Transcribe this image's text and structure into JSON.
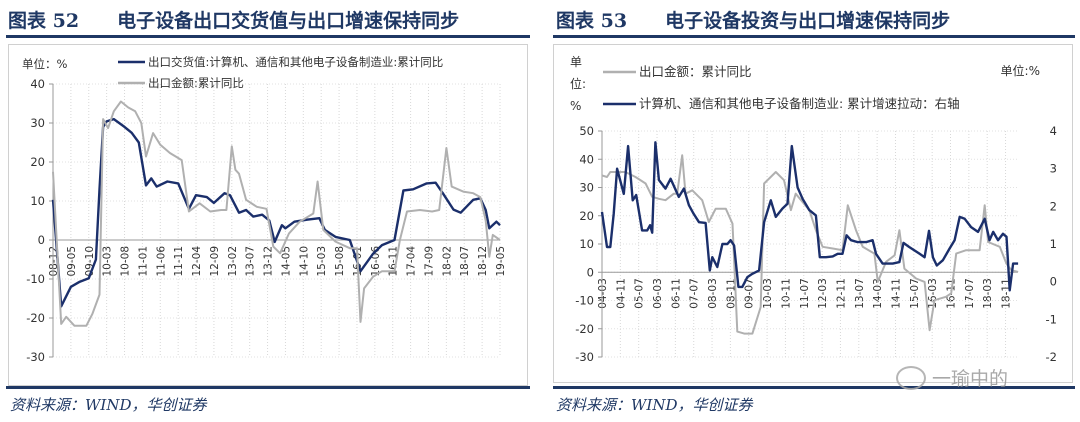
{
  "figures": [
    {
      "label": "图表 52",
      "title": "电子设备出口交货值与出口增速保持同步",
      "source": "资料来源：WIND，华创证券"
    },
    {
      "label": "图表 53",
      "title": "电子设备投资与出口增速保持同步",
      "source": "资料来源：WIND，华创证券"
    }
  ],
  "watermark": "一瑜中的",
  "colors": {
    "navy": "#1f3864",
    "series_dark": "#1b2f6b",
    "series_gray": "#b0b0b0"
  },
  "chart_data": [
    {
      "type": "line",
      "unit_label": "单位：%",
      "ylim": [
        -30,
        40
      ],
      "yticks": [
        "40",
        "30",
        "20",
        "10",
        "0",
        "-10",
        "-20",
        "-30"
      ],
      "x_tick_labels": [
        "08-12",
        "09-05",
        "09-10",
        "10-03",
        "10-08",
        "11-01",
        "11-06",
        "11-11",
        "12-04",
        "12-09",
        "13-02",
        "13-07",
        "13-12",
        "14-05",
        "14-10",
        "15-03",
        "15-08",
        "16-01",
        "16-06",
        "16-11",
        "17-04",
        "17-09",
        "18-02",
        "18-07",
        "18-12",
        "19-05"
      ],
      "x_tick_step_months": 5,
      "months": 126,
      "series": [
        {
          "name": "出口交货值:计算机、通信和其他电子设备制造业:累计同比",
          "color": "#1b2f6b",
          "axis": "left",
          "points": [
            [
              0,
              10.3
            ],
            [
              2.3,
              -17
            ],
            [
              5,
              -12
            ],
            [
              7.5,
              -10.7
            ],
            [
              10,
              -9.8
            ],
            [
              12,
              -5
            ],
            [
              13,
              13
            ],
            [
              14,
              29
            ],
            [
              15,
              30.4
            ],
            [
              17,
              31
            ],
            [
              20,
              29
            ],
            [
              22,
              27.5
            ],
            [
              24,
              25
            ],
            [
              26,
              14
            ],
            [
              27.5,
              15.8
            ],
            [
              29,
              13.7
            ],
            [
              32,
              15
            ],
            [
              35,
              14.5
            ],
            [
              38,
              8
            ],
            [
              40,
              11.5
            ],
            [
              43,
              11
            ],
            [
              45,
              9.5
            ],
            [
              48,
              12
            ],
            [
              49.5,
              11.5
            ],
            [
              52,
              7
            ],
            [
              54,
              7.7
            ],
            [
              56,
              6
            ],
            [
              58.5,
              6.5
            ],
            [
              60.5,
              5
            ],
            [
              62,
              -0.5
            ],
            [
              64,
              3.8
            ],
            [
              65,
              3
            ],
            [
              67.5,
              4.7
            ],
            [
              71,
              5.2
            ],
            [
              74.5,
              5.6
            ],
            [
              76,
              2.6
            ],
            [
              79,
              0.8
            ],
            [
              83,
              0
            ],
            [
              86,
              -8
            ],
            [
              89.5,
              -3.5
            ],
            [
              92,
              -1.3
            ],
            [
              95.5,
              0
            ],
            [
              98,
              12.7
            ],
            [
              100.7,
              13
            ],
            [
              104.5,
              14.5
            ],
            [
              107,
              14.7
            ],
            [
              109,
              12
            ],
            [
              112,
              7.8
            ],
            [
              114,
              7
            ],
            [
              117.5,
              10.3
            ],
            [
              119.5,
              10.7
            ],
            [
              121,
              7.7
            ],
            [
              122,
              3
            ],
            [
              124,
              4.7
            ],
            [
              125,
              3.8
            ]
          ]
        },
        {
          "name": "出口金额:累计同比",
          "color": "#b0b0b0",
          "axis": "left",
          "points": [
            [
              0,
              17.5
            ],
            [
              2.3,
              -21.5
            ],
            [
              3.7,
              -19.7
            ],
            [
              6,
              -22
            ],
            [
              9.3,
              -22
            ],
            [
              11,
              -19
            ],
            [
              13,
              -14
            ],
            [
              14,
              31
            ],
            [
              15.4,
              28.7
            ],
            [
              17,
              33
            ],
            [
              19,
              35.5
            ],
            [
              21,
              34
            ],
            [
              23,
              33
            ],
            [
              24.7,
              30
            ],
            [
              26,
              21.4
            ],
            [
              28,
              27.4
            ],
            [
              30,
              24.4
            ],
            [
              32.7,
              22.3
            ],
            [
              36,
              20.5
            ],
            [
              38,
              7.3
            ],
            [
              41,
              9.4
            ],
            [
              44,
              7.3
            ],
            [
              47,
              7.7
            ],
            [
              48.5,
              7.7
            ],
            [
              50,
              24
            ],
            [
              51,
              18
            ],
            [
              52,
              17
            ],
            [
              54,
              10.3
            ],
            [
              57,
              8.5
            ],
            [
              59.7,
              8
            ],
            [
              61.6,
              -1.7
            ],
            [
              63.5,
              -3.4
            ],
            [
              66,
              1.7
            ],
            [
              69,
              4.7
            ],
            [
              72.8,
              6.8
            ],
            [
              74,
              15
            ],
            [
              75.6,
              2.6
            ],
            [
              79,
              -0.4
            ],
            [
              83,
              -2.1
            ],
            [
              85,
              -2.1
            ],
            [
              86,
              -21
            ],
            [
              87,
              -12.4
            ],
            [
              89.5,
              -9.4
            ],
            [
              92,
              -8
            ],
            [
              95.5,
              -8
            ],
            [
              97,
              0
            ],
            [
              99,
              7.3
            ],
            [
              102.6,
              7.7
            ],
            [
              106,
              7.3
            ],
            [
              108,
              7.7
            ],
            [
              110,
              23.6
            ],
            [
              111.5,
              13.7
            ],
            [
              114.7,
              12.4
            ],
            [
              117.5,
              12
            ],
            [
              119.5,
              11
            ],
            [
              121,
              5
            ],
            [
              122,
              -4.3
            ],
            [
              123,
              1.3
            ],
            [
              125,
              0
            ]
          ]
        }
      ]
    },
    {
      "type": "line",
      "unit_label_left": [
        "单",
        "位:",
        "%"
      ],
      "unit_label_right": "单位:%",
      "ylim": [
        -30,
        50
      ],
      "y2lim": [
        -2,
        4
      ],
      "yticks": [
        "50",
        "40",
        "30",
        "20",
        "10",
        "0",
        "-10",
        "-20",
        "-30"
      ],
      "y2ticks": [
        "4",
        "3",
        "2",
        "1",
        "0",
        "-1",
        "-2"
      ],
      "x_tick_labels": [
        "04-03",
        "04-11",
        "05-07",
        "06-03",
        "06-11",
        "07-07",
        "08-03",
        "08-11",
        "09-07",
        "10-03",
        "10-11",
        "11-07",
        "12-03",
        "12-11",
        "13-07",
        "14-03",
        "14-11",
        "15-07",
        "16-03",
        "16-11",
        "17-07",
        "18-03",
        "18-11"
      ],
      "x_tick_step_months": 8,
      "months": 182,
      "series": [
        {
          "name": "出口金额：累计同比",
          "color": "#b0b0b0",
          "axis": "left",
          "points": [
            [
              0,
              34.3
            ],
            [
              2.2,
              33.7
            ],
            [
              3.6,
              35.5
            ],
            [
              10.2,
              35.5
            ],
            [
              14.6,
              33.7
            ],
            [
              19,
              31.4
            ],
            [
              21.9,
              26.7
            ],
            [
              24.8,
              26
            ],
            [
              27.7,
              25.5
            ],
            [
              31.3,
              27.8
            ],
            [
              32.8,
              27.8
            ],
            [
              35,
              41.4
            ],
            [
              36.4,
              27.8
            ],
            [
              39.4,
              29
            ],
            [
              43.7,
              25.5
            ],
            [
              46.6,
              17.8
            ],
            [
              49.6,
              22.5
            ],
            [
              54,
              22.5
            ],
            [
              56.9,
              17.2
            ],
            [
              59,
              -21
            ],
            [
              62,
              -21.7
            ],
            [
              65.6,
              -21.7
            ],
            [
              69.2,
              -12.3
            ],
            [
              70.7,
              31.4
            ],
            [
              75.8,
              35.5
            ],
            [
              79.4,
              32.6
            ],
            [
              82.4,
              22
            ],
            [
              84.5,
              27.8
            ],
            [
              90.4,
              22
            ],
            [
              93.3,
              14.9
            ],
            [
              96.2,
              9
            ],
            [
              100.6,
              8.4
            ],
            [
              104.9,
              7.8
            ],
            [
              107.2,
              23.7
            ],
            [
              110.8,
              14.9
            ],
            [
              113.7,
              9
            ],
            [
              118.8,
              6.6
            ],
            [
              120.3,
              -3.4
            ],
            [
              123.9,
              3.7
            ],
            [
              127.6,
              6
            ],
            [
              129.7,
              14.9
            ],
            [
              131.9,
              1.3
            ],
            [
              137,
              -2.2
            ],
            [
              140.7,
              -3.4
            ],
            [
              142.9,
              -20.5
            ],
            [
              145,
              -9.9
            ],
            [
              150,
              -8.7
            ],
            [
              152.3,
              -7.5
            ],
            [
              154.5,
              6.6
            ],
            [
              158.8,
              7.8
            ],
            [
              164.7,
              7.8
            ],
            [
              166.9,
              23.7
            ],
            [
              168.4,
              10.7
            ],
            [
              173.5,
              9
            ],
            [
              176.4,
              3
            ],
            [
              178.6,
              0.7
            ],
            [
              181.5,
              0.1
            ]
          ]
        },
        {
          "name": "计算机、通信和其他电子设备制造业: 累计增速拉动：右轴",
          "color": "#1b2f6b",
          "axis": "right",
          "points": [
            [
              0,
              1.85
            ],
            [
              2.2,
              0.92
            ],
            [
              3.6,
              0.92
            ],
            [
              5.1,
              1.8
            ],
            [
              6.6,
              3
            ],
            [
              9.5,
              2.33
            ],
            [
              11.4,
              3.6
            ],
            [
              13.4,
              2.16
            ],
            [
              14.9,
              2.3
            ],
            [
              17.5,
              1.36
            ],
            [
              19.7,
              1.36
            ],
            [
              21,
              1.5
            ],
            [
              21.9,
              1.3
            ],
            [
              23.3,
              3.7
            ],
            [
              24.8,
              2.7
            ],
            [
              27.7,
              2.47
            ],
            [
              29.9,
              2.73
            ],
            [
              33.5,
              2.25
            ],
            [
              35.7,
              2.47
            ],
            [
              37.9,
              2.03
            ],
            [
              40,
              1.8
            ],
            [
              42.3,
              1.58
            ],
            [
              45.2,
              1.56
            ],
            [
              47,
              0.3
            ],
            [
              48.1,
              0.65
            ],
            [
              50.3,
              0.39
            ],
            [
              52.5,
              1
            ],
            [
              54.7,
              1
            ],
            [
              56.1,
              1.1
            ],
            [
              57.6,
              0.96
            ],
            [
              59.5,
              -0.14
            ],
            [
              61.2,
              -0.14
            ],
            [
              63.4,
              0.12
            ],
            [
              65.6,
              0.21
            ],
            [
              68.5,
              0.3
            ],
            [
              70.7,
              1.58
            ],
            [
              73.6,
              2.16
            ],
            [
              75.8,
              1.72
            ],
            [
              78.7,
              1.94
            ],
            [
              80.9,
              2.07
            ],
            [
              82.8,
              3.6
            ],
            [
              85.3,
              2.5
            ],
            [
              87.5,
              2.2
            ],
            [
              90.4,
              1.9
            ],
            [
              93.3,
              1.76
            ],
            [
              95,
              0.65
            ],
            [
              97.7,
              0.65
            ],
            [
              100.6,
              0.67
            ],
            [
              102.8,
              0.74
            ],
            [
              104.9,
              0.74
            ],
            [
              106.7,
              1.23
            ],
            [
              108.6,
              1.1
            ],
            [
              111.5,
              1.05
            ],
            [
              115.2,
              1.05
            ],
            [
              118,
              1.1
            ],
            [
              119.5,
              0.74
            ],
            [
              122.4,
              0.48
            ],
            [
              126.8,
              0.48
            ],
            [
              129.7,
              0.52
            ],
            [
              131.5,
              1.03
            ],
            [
              134,
              0.92
            ],
            [
              138.5,
              0.74
            ],
            [
              140.7,
              0.65
            ],
            [
              142.6,
              1.35
            ],
            [
              144.3,
              0.65
            ],
            [
              146,
              0.43
            ],
            [
              148.7,
              0.57
            ],
            [
              151.6,
              0.88
            ],
            [
              153.8,
              1.1
            ],
            [
              156,
              1.72
            ],
            [
              158.2,
              1.67
            ],
            [
              161,
              1.45
            ],
            [
              164,
              1.32
            ],
            [
              166.9,
              1.67
            ],
            [
              169,
              1.1
            ],
            [
              170.6,
              1.32
            ],
            [
              172.7,
              1.1
            ],
            [
              174.9,
              1.27
            ],
            [
              176.4,
              1.19
            ],
            [
              177.8,
              -0.23
            ],
            [
              179.3,
              0.48
            ],
            [
              181.5,
              0.48
            ]
          ]
        }
      ]
    }
  ]
}
